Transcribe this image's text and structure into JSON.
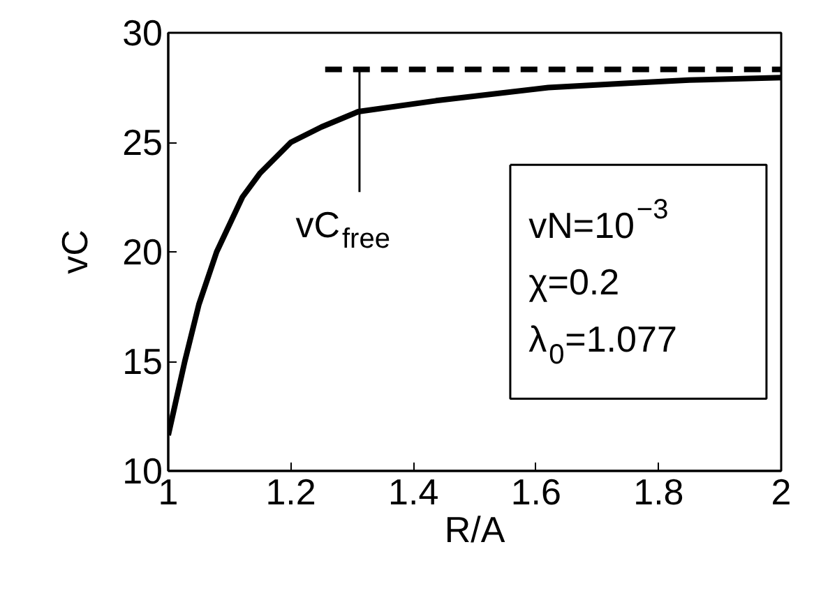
{
  "chart_data": {
    "type": "line",
    "xlabel": "R/A",
    "ylabel": "vC",
    "xlim": [
      1,
      2
    ],
    "ylim": [
      10,
      30
    ],
    "xticks": [
      1,
      1.2,
      1.4,
      1.6,
      1.8,
      2
    ],
    "yticks": [
      10,
      15,
      20,
      25,
      30
    ],
    "grid": false,
    "series": [
      {
        "color": "#000000",
        "line_style": "solid",
        "x": [
          1,
          1.027,
          1.05,
          1.079,
          1.121,
          1.15,
          1.2,
          1.25,
          1.31,
          1.437,
          1.62,
          1.75,
          1.85,
          2
        ],
        "values": [
          11.63,
          15,
          17.6,
          20,
          22.5,
          23.6,
          25,
          25.7,
          26.4,
          26.9,
          27.5,
          27.7,
          27.84,
          27.95
        ]
      },
      {
        "color": "#000000",
        "line_style": "dashed",
        "x": [
          1.256,
          2
        ],
        "values": [
          28.33,
          28.33
        ]
      }
    ],
    "annotations": [
      {
        "text": "vC$_{free}$",
        "x": 1.312,
        "y": 28.33
      },
      "vN=10$^{−3}$",
      "χ=0.2",
      "λ$_{0}$=1.077"
    ]
  }
}
